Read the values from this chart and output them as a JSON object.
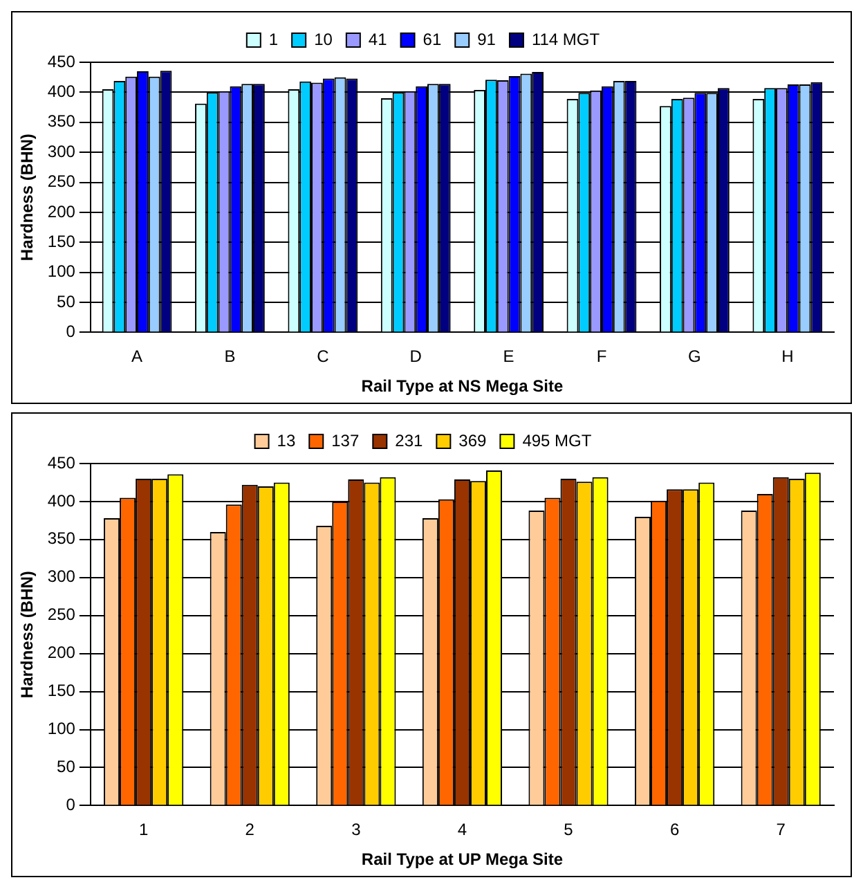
{
  "chart_data": [
    {
      "type": "bar",
      "xlabel": "Rail Type at NS Mega Site",
      "ylabel": "Hardness (BHN)",
      "categories": [
        "A",
        "B",
        "C",
        "D",
        "E",
        "F",
        "G",
        "H"
      ],
      "ylim": [
        0,
        450
      ],
      "yticks": [
        0,
        50,
        100,
        150,
        200,
        250,
        300,
        350,
        400,
        450
      ],
      "grid": "y",
      "legend": "top",
      "series": [
        {
          "name": "1",
          "color": "#ccffff",
          "values": [
            405,
            381,
            405,
            390,
            404,
            389,
            377,
            389
          ]
        },
        {
          "name": "10",
          "color": "#00ccff",
          "values": [
            419,
            400,
            418,
            400,
            421,
            399,
            389,
            407
          ]
        },
        {
          "name": "41",
          "color": "#9999ff",
          "values": [
            426,
            402,
            416,
            402,
            420,
            403,
            391,
            407
          ]
        },
        {
          "name": "61",
          "color": "#0000ff",
          "values": [
            435,
            410,
            423,
            410,
            427,
            410,
            399,
            413
          ]
        },
        {
          "name": "91",
          "color": "#99ccff",
          "values": [
            426,
            414,
            425,
            414,
            431,
            419,
            399,
            413
          ]
        },
        {
          "name": "114 MGT",
          "color": "#000080",
          "values": [
            436,
            414,
            423,
            414,
            434,
            419,
            407,
            417
          ]
        }
      ]
    },
    {
      "type": "bar",
      "xlabel": "Rail Type at UP Mega Site",
      "ylabel": "Hardness (BHN)",
      "categories": [
        "1",
        "2",
        "3",
        "4",
        "5",
        "6",
        "7"
      ],
      "ylim": [
        0,
        450
      ],
      "yticks": [
        0,
        50,
        100,
        150,
        200,
        250,
        300,
        350,
        400,
        450
      ],
      "grid": "y",
      "legend": "top",
      "series": [
        {
          "name": "13",
          "color": "#ffcc99",
          "values": [
            378,
            360,
            368,
            378,
            388,
            380,
            388
          ]
        },
        {
          "name": "137",
          "color": "#ff6600",
          "values": [
            405,
            396,
            400,
            403,
            405,
            401,
            410
          ]
        },
        {
          "name": "231",
          "color": "#993300",
          "values": [
            430,
            422,
            429,
            429,
            430,
            416,
            432
          ]
        },
        {
          "name": "369",
          "color": "#ffcc00",
          "values": [
            430,
            420,
            425,
            427,
            426,
            416,
            430
          ]
        },
        {
          "name": "495 MGT",
          "color": "#ffff00",
          "values": [
            436,
            425,
            432,
            441,
            432,
            425,
            438
          ]
        }
      ]
    }
  ]
}
